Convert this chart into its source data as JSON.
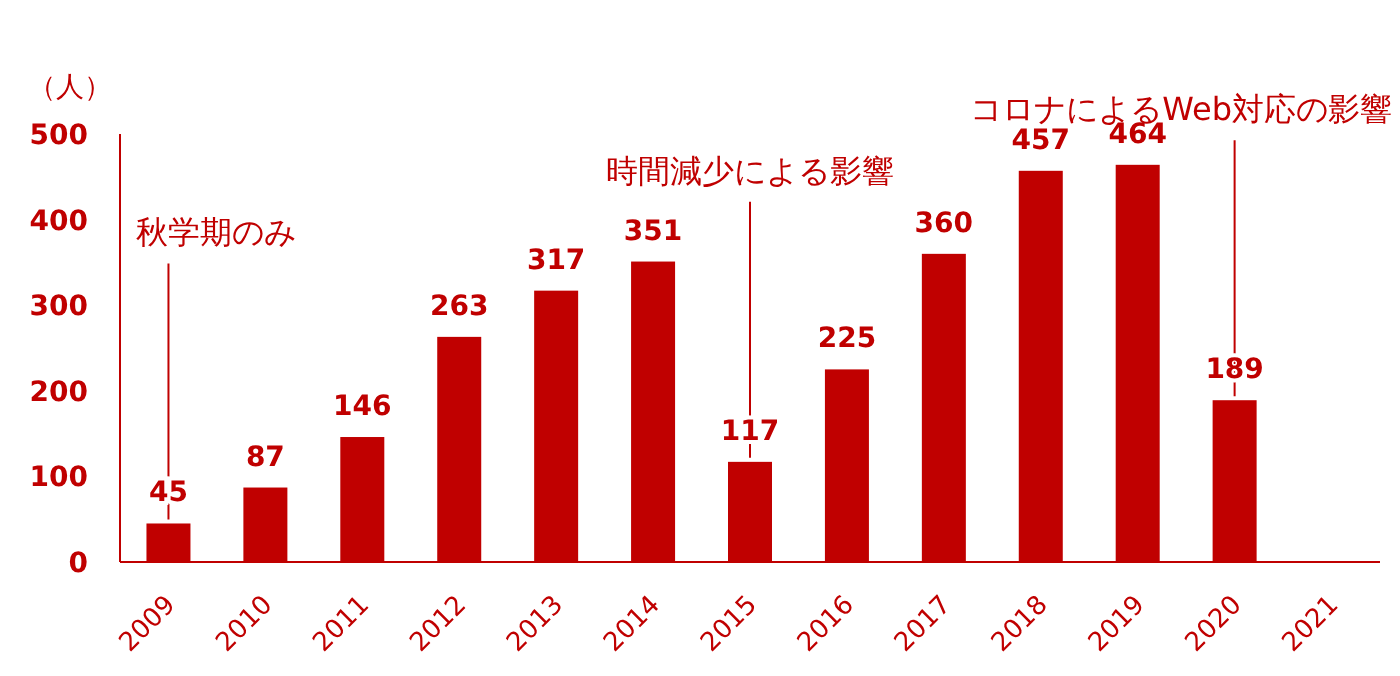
{
  "chart_data": {
    "type": "bar",
    "ylabel": "（人）",
    "categories": [
      "2009",
      "2010",
      "2011",
      "2012",
      "2013",
      "2014",
      "2015",
      "2016",
      "2017",
      "2018",
      "2019",
      "2020",
      "2021"
    ],
    "values": [
      45,
      87,
      146,
      263,
      317,
      351,
      117,
      225,
      360,
      457,
      464,
      189,
      null
    ],
    "color": "#c00000",
    "ylim": [
      0,
      500
    ],
    "yticks": [
      0,
      100,
      200,
      300,
      400,
      500
    ],
    "data_labels": true,
    "grid": false,
    "annotations": [
      {
        "text": "秋学期のみ",
        "x": "2009",
        "y": 45
      },
      {
        "text": "時間減少による影響",
        "x": "2015",
        "y": 117
      },
      {
        "text": "コロナによるWeb対応の影響",
        "x": "2020",
        "y": 189
      }
    ]
  }
}
